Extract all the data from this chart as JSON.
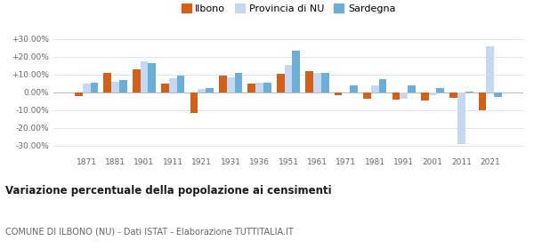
{
  "years": [
    1871,
    1881,
    1901,
    1911,
    1921,
    1931,
    1936,
    1951,
    1961,
    1971,
    1981,
    1991,
    2001,
    2011,
    2021
  ],
  "ilbono": [
    -2.0,
    11.0,
    13.0,
    5.0,
    -11.5,
    9.5,
    5.0,
    10.5,
    12.0,
    -1.5,
    -3.5,
    -4.0,
    -4.5,
    -3.0,
    -10.0
  ],
  "provincia": [
    5.0,
    6.0,
    17.5,
    8.0,
    2.0,
    8.5,
    5.5,
    15.5,
    11.0,
    0.0,
    4.0,
    -3.5,
    -1.5,
    -29.0,
    26.0
  ],
  "sardegna": [
    5.5,
    7.0,
    16.5,
    9.5,
    2.5,
    11.0,
    5.5,
    23.5,
    11.0,
    4.0,
    7.5,
    4.0,
    2.5,
    0.5,
    -2.5
  ],
  "color_ilbono": "#d2601a",
  "color_provincia": "#c5d8f0",
  "color_sardegna": "#6baed6",
  "title": "Variazione percentuale della popolazione ai censimenti",
  "subtitle": "COMUNE DI ILBONO (NU) - Dati ISTAT - Elaborazione TUTTITALIA.IT",
  "yticks": [
    -30,
    -20,
    -10,
    0,
    10,
    20,
    30
  ],
  "ytick_labels": [
    "-30.00%",
    "-20.00%",
    "-10.00%",
    "0.00%",
    "+10.00%",
    "+20.00%",
    "+30.00%"
  ],
  "ylim": [
    -35,
    35
  ],
  "background_color": "#ffffff",
  "grid_color": "#e0e6f0"
}
